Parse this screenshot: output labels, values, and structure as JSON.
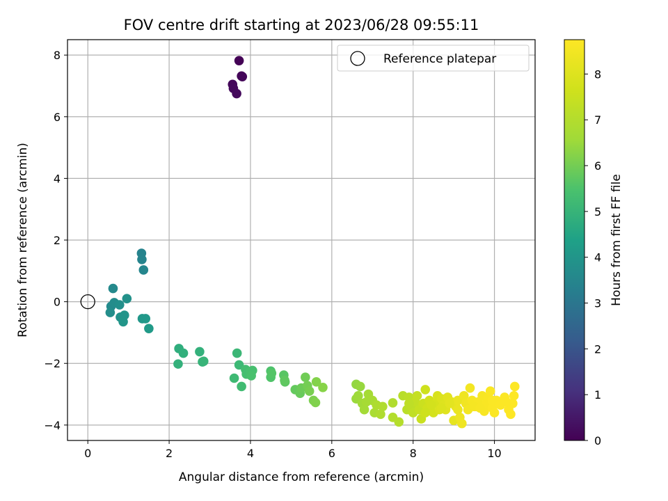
{
  "chart_data": {
    "type": "scatter",
    "title": "FOV centre drift starting at 2023/06/28 09:55:11",
    "xlabel": "Angular distance from reference (arcmin)",
    "ylabel": "Rotation from reference (arcmin)",
    "xlim": [
      -0.5,
      11.0
    ],
    "ylim": [
      -4.5,
      8.5
    ],
    "xticks": [
      0,
      2,
      4,
      6,
      8,
      10
    ],
    "yticks": [
      -4,
      -2,
      0,
      2,
      4,
      6,
      8
    ],
    "grid": true,
    "legend": {
      "placement": "upper-right",
      "entries": [
        "Reference platepar"
      ]
    },
    "reference_point": {
      "x": 0,
      "y": 0
    },
    "colorbar": {
      "label": "Hours from first FF file",
      "colormap": "viridis",
      "range": [
        0,
        8.75
      ],
      "ticks": [
        0,
        1,
        2,
        3,
        4,
        5,
        6,
        7,
        8
      ]
    },
    "points": [
      [
        3.72,
        7.82,
        0.05
      ],
      [
        3.78,
        7.32,
        0.1
      ],
      [
        3.8,
        7.3,
        0.12
      ],
      [
        3.56,
        7.05,
        0.15
      ],
      [
        3.58,
        6.92,
        0.18
      ],
      [
        3.66,
        6.75,
        0.2
      ],
      [
        1.32,
        1.57,
        3.4
      ],
      [
        1.33,
        1.37,
        3.45
      ],
      [
        1.37,
        1.03,
        3.5
      ],
      [
        0.62,
        0.43,
        3.6
      ],
      [
        0.57,
        -0.15,
        3.65
      ],
      [
        0.65,
        -0.03,
        3.7
      ],
      [
        0.55,
        -0.35,
        3.75
      ],
      [
        0.78,
        -0.1,
        3.8
      ],
      [
        0.96,
        0.1,
        3.85
      ],
      [
        0.8,
        -0.5,
        3.9
      ],
      [
        0.9,
        -0.44,
        3.95
      ],
      [
        0.87,
        -0.65,
        4.0
      ],
      [
        1.34,
        -0.55,
        4.05
      ],
      [
        1.42,
        -0.55,
        4.1
      ],
      [
        1.5,
        -0.87,
        4.15
      ],
      [
        2.24,
        -1.52,
        4.8
      ],
      [
        2.35,
        -1.67,
        4.85
      ],
      [
        2.22,
        -2.02,
        4.9
      ],
      [
        2.75,
        -1.62,
        4.9
      ],
      [
        2.82,
        -1.95,
        4.95
      ],
      [
        2.85,
        -1.93,
        5.0
      ],
      [
        3.67,
        -1.67,
        5.1
      ],
      [
        3.72,
        -2.05,
        5.15
      ],
      [
        3.6,
        -2.48,
        5.2
      ],
      [
        3.78,
        -2.75,
        5.25
      ],
      [
        3.88,
        -2.2,
        5.3
      ],
      [
        3.9,
        -2.35,
        5.35
      ],
      [
        4.0,
        -2.27,
        5.4
      ],
      [
        4.05,
        -2.23,
        5.4
      ],
      [
        4.02,
        -2.4,
        5.45
      ],
      [
        4.5,
        -2.25,
        5.5
      ],
      [
        4.5,
        -2.45,
        5.55
      ],
      [
        4.52,
        -2.32,
        5.6
      ],
      [
        4.82,
        -2.38,
        5.65
      ],
      [
        4.85,
        -2.6,
        5.7
      ],
      [
        4.84,
        -2.55,
        5.75
      ],
      [
        5.1,
        -2.85,
        5.8
      ],
      [
        5.22,
        -2.97,
        5.85
      ],
      [
        5.25,
        -2.8,
        5.9
      ],
      [
        5.35,
        -2.45,
        5.95
      ],
      [
        5.4,
        -2.72,
        6.0
      ],
      [
        5.45,
        -2.9,
        6.05
      ],
      [
        5.55,
        -3.2,
        6.1
      ],
      [
        5.6,
        -3.27,
        6.15
      ],
      [
        5.62,
        -2.6,
        6.2
      ],
      [
        5.78,
        -2.78,
        6.25
      ],
      [
        6.6,
        -2.68,
        6.4
      ],
      [
        6.7,
        -2.75,
        6.45
      ],
      [
        6.6,
        -3.15,
        6.5
      ],
      [
        6.65,
        -3.05,
        6.55
      ],
      [
        6.75,
        -3.3,
        6.6
      ],
      [
        6.8,
        -3.5,
        6.65
      ],
      [
        6.9,
        -3.0,
        6.7
      ],
      [
        7.0,
        -3.2,
        6.75
      ],
      [
        7.05,
        -3.6,
        6.8
      ],
      [
        7.1,
        -3.35,
        6.85
      ],
      [
        7.2,
        -3.65,
        6.9
      ],
      [
        7.5,
        -3.28,
        6.95
      ],
      [
        7.5,
        -3.75,
        7.0
      ],
      [
        7.65,
        -3.9,
        7.05
      ],
      [
        7.75,
        -3.05,
        7.1
      ],
      [
        7.85,
        -3.5,
        7.15
      ],
      [
        7.9,
        -3.1,
        7.2
      ],
      [
        7.95,
        -3.4,
        7.25
      ],
      [
        8.0,
        -3.6,
        7.3
      ],
      [
        8.05,
        -3.25,
        7.35
      ],
      [
        8.1,
        -3.05,
        7.4
      ],
      [
        8.15,
        -3.5,
        7.45
      ],
      [
        8.2,
        -3.8,
        7.5
      ],
      [
        8.25,
        -3.3,
        7.55
      ],
      [
        8.3,
        -2.85,
        7.6
      ],
      [
        8.35,
        -3.45,
        7.65
      ],
      [
        8.4,
        -3.2,
        7.7
      ],
      [
        8.5,
        -3.6,
        7.75
      ],
      [
        8.55,
        -3.3,
        7.8
      ],
      [
        8.6,
        -3.05,
        7.85
      ],
      [
        8.65,
        -3.5,
        7.9
      ],
      [
        8.7,
        -3.15,
        7.95
      ],
      [
        8.75,
        -3.35,
        8.0
      ],
      [
        8.8,
        -3.5,
        8.05
      ],
      [
        8.85,
        -3.1,
        8.1
      ],
      [
        8.95,
        -3.25,
        8.15
      ],
      [
        9.0,
        -3.85,
        8.2
      ],
      [
        9.05,
        -3.4,
        8.25
      ],
      [
        9.1,
        -3.2,
        8.3
      ],
      [
        9.15,
        -3.75,
        8.35
      ],
      [
        9.2,
        -3.95,
        8.4
      ],
      [
        9.25,
        -3.05,
        8.4
      ],
      [
        9.3,
        -3.3,
        8.45
      ],
      [
        9.35,
        -3.5,
        8.5
      ],
      [
        9.4,
        -2.8,
        8.5
      ],
      [
        9.45,
        -3.2,
        8.55
      ],
      [
        9.55,
        -3.4,
        8.55
      ],
      [
        9.6,
        -3.25,
        8.6
      ],
      [
        9.7,
        -3.05,
        8.6
      ],
      [
        9.75,
        -3.55,
        8.62
      ],
      [
        9.8,
        -3.3,
        8.65
      ],
      [
        9.85,
        -3.1,
        8.65
      ],
      [
        9.9,
        -2.9,
        8.68
      ],
      [
        9.95,
        -3.45,
        8.7
      ],
      [
        10.0,
        -3.6,
        8.7
      ],
      [
        10.05,
        -3.2,
        8.72
      ],
      [
        10.15,
        -3.35,
        8.72
      ],
      [
        10.25,
        -3.1,
        8.73
      ],
      [
        10.35,
        -3.5,
        8.74
      ],
      [
        10.4,
        -3.65,
        8.74
      ],
      [
        10.45,
        -3.3,
        8.75
      ],
      [
        10.5,
        -2.75,
        8.75
      ],
      [
        10.48,
        -3.05,
        8.75
      ],
      [
        7.9,
        -3.3,
        7.25
      ],
      [
        8.3,
        -3.6,
        7.6
      ],
      [
        8.7,
        -3.45,
        7.95
      ],
      [
        9.1,
        -3.5,
        8.3
      ],
      [
        9.5,
        -3.4,
        8.55
      ],
      [
        9.95,
        -3.2,
        8.7
      ],
      [
        10.3,
        -3.25,
        8.73
      ],
      [
        6.85,
        -3.25,
        6.7
      ],
      [
        7.25,
        -3.4,
        6.92
      ],
      [
        8.45,
        -3.35,
        7.72
      ],
      [
        8.9,
        -3.3,
        8.12
      ],
      [
        9.65,
        -3.45,
        8.6
      ]
    ]
  }
}
